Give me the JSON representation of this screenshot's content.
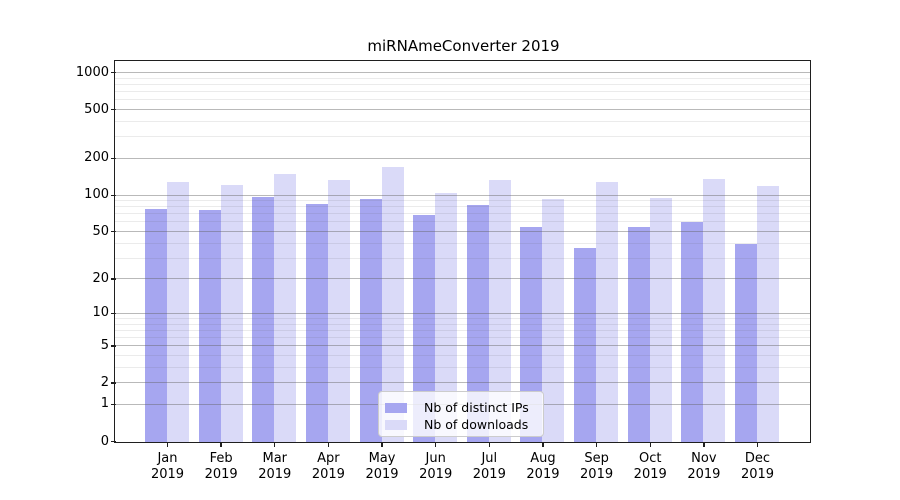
{
  "figure": {
    "title": "miRNAmeConverter 2019"
  },
  "chart_data": {
    "type": "bar",
    "title": "miRNAmeConverter 2019",
    "categories": [
      "Jan",
      "Feb",
      "Mar",
      "Apr",
      "May",
      "Jun",
      "Jul",
      "Aug",
      "Sep",
      "Oct",
      "Nov",
      "Dec"
    ],
    "x_year_label": "2019",
    "series": [
      {
        "name": "Nb of distinct IPs",
        "color": "#a6a6f0",
        "values": [
          78,
          76,
          97,
          85,
          94,
          69,
          83,
          55,
          37,
          55,
          61,
          40
        ]
      },
      {
        "name": "Nb of downloads",
        "color": "#dadaf8",
        "values": [
          130,
          121,
          149,
          134,
          171,
          105,
          134,
          94,
          130,
          96,
          137,
          120
        ]
      }
    ],
    "yscale": "log1p",
    "ylim": [
      0,
      1230
    ],
    "yticks": [
      0,
      1,
      2,
      5,
      10,
      20,
      50,
      100,
      200,
      500,
      1000
    ],
    "yticks_minor": [
      3,
      4,
      6,
      7,
      8,
      9,
      30,
      40,
      60,
      70,
      80,
      90,
      300,
      400,
      600,
      700,
      800,
      900
    ],
    "grid": true,
    "legend_position": "lower center"
  },
  "colors": {
    "background": "#ffffff",
    "spine": "#1f1f1f",
    "grid_major": "rgba(100,100,100,0.45)",
    "grid_minor": "rgba(100,100,100,0.13)",
    "bar_distinct_ips": "#a6a6f0",
    "bar_downloads": "#dadaf8",
    "legend_border": "#cccccc"
  }
}
